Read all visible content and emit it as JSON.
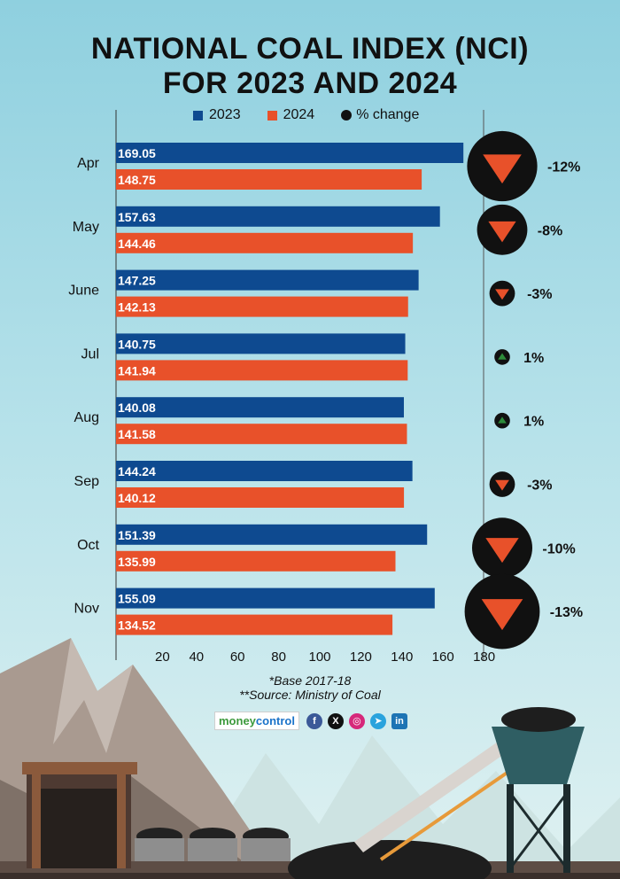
{
  "title_lines": [
    "NATIONAL COAL INDEX (NCI)",
    "FOR 2023 AND 2024"
  ],
  "legend": {
    "s2023": "2023",
    "s2024": "2024",
    "change": "% change"
  },
  "chart_data": {
    "type": "bar",
    "orientation": "horizontal",
    "title": "NATIONAL COAL INDEX (NCI) FOR 2023 AND 2024",
    "categories": [
      "Apr",
      "May",
      "June",
      "Jul",
      "Aug",
      "Sep",
      "Oct",
      "Nov"
    ],
    "series": [
      {
        "name": "2023",
        "color": "#0e4a90",
        "values": [
          169.05,
          157.63,
          147.25,
          140.75,
          140.08,
          144.24,
          151.39,
          155.09
        ]
      },
      {
        "name": "2024",
        "color": "#e8512a",
        "values": [
          148.75,
          144.46,
          142.13,
          141.94,
          141.58,
          140.12,
          135.99,
          134.52
        ]
      }
    ],
    "value_labels": {
      "2023": [
        "169.05",
        "157.63",
        "147.25",
        "140.75",
        "140.08",
        "144.24",
        "151.39",
        "155.09"
      ],
      "2024": [
        "148.75",
        "144.46",
        "142.13",
        "141.94",
        "141.58",
        "140.12",
        "135.99",
        "134.52"
      ]
    },
    "pct_change": [
      -12,
      -8,
      -3,
      1,
      1,
      -3,
      -10,
      -13
    ],
    "pct_change_labels": [
      "-12%",
      "-8%",
      "-3%",
      "1%",
      "1%",
      "-3%",
      "-10%",
      "-13%"
    ],
    "x_ticks": [
      20,
      40,
      60,
      80,
      100,
      120,
      140,
      160,
      180
    ],
    "x_tick_labels": [
      "20",
      "40",
      "60",
      "80",
      "100",
      "120",
      "140",
      "160",
      "180"
    ],
    "xlim": [
      0,
      180
    ],
    "grid": false,
    "legend_position": "top",
    "colors": {
      "down_marker": "#e8512a",
      "up_marker": "#2e8b3a",
      "marker_circle": "#111111"
    }
  },
  "footnote": {
    "base": "*Base 2017-18",
    "source": "**Source: Ministry of Coal"
  },
  "brand": {
    "money": "money",
    "control": "control"
  },
  "social_icons": [
    "facebook-icon",
    "x-icon",
    "instagram-icon",
    "telegram-icon",
    "linkedin-icon"
  ],
  "social_glyphs": {
    "fb": "f",
    "x": "X",
    "ig": "◎",
    "tg": "➤",
    "li": "in"
  }
}
